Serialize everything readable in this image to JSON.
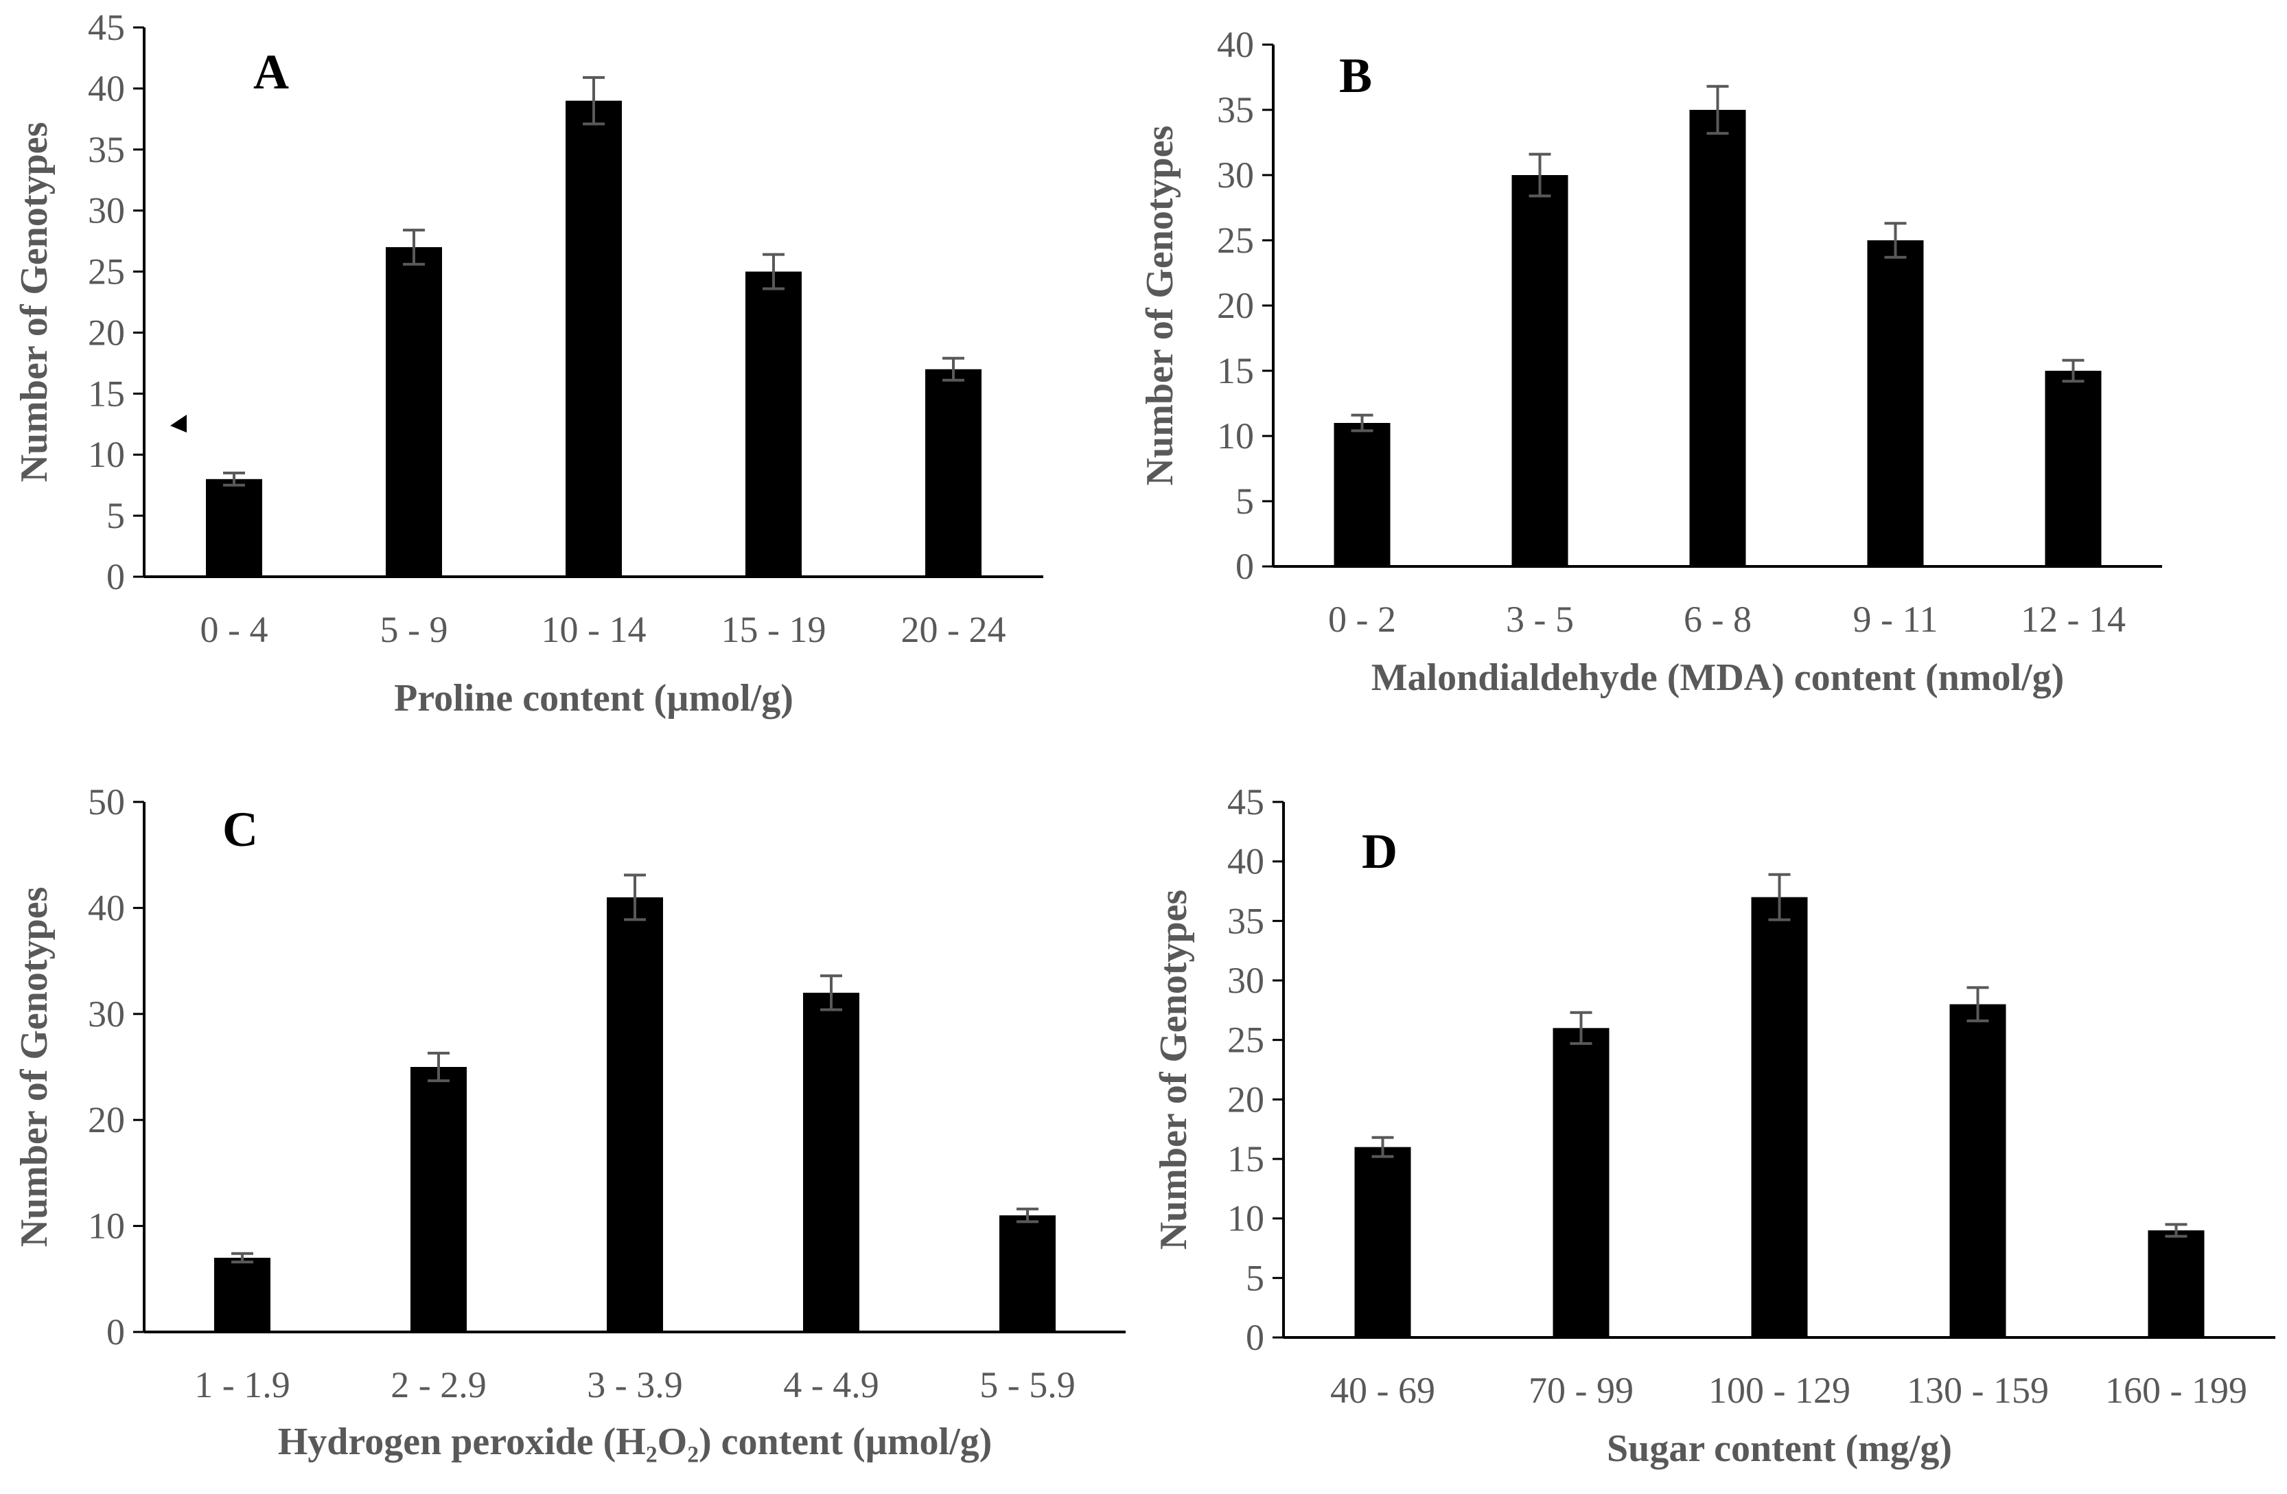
{
  "figure": {
    "background": "#ffffff",
    "bar_color": "#000000",
    "axis_color": "#000000",
    "text_color": "#595959",
    "errorbar_color": "#595959"
  },
  "chart_data": [
    {
      "panel": "A",
      "type": "bar",
      "categories": [
        "0 - 4",
        "5 - 9",
        "10 - 14",
        "15 - 19",
        "20 - 24"
      ],
      "values": [
        8,
        27,
        39,
        25,
        17
      ],
      "errors": [
        0.5,
        1.4,
        1.9,
        1.4,
        0.9
      ],
      "yticks": [
        0,
        5,
        10,
        15,
        20,
        25,
        30,
        35,
        40,
        45
      ],
      "ylim": [
        0,
        45
      ],
      "xlabel": "Proline content (µmol/g)",
      "ylabel": "Number of Genotypes"
    },
    {
      "panel": "B",
      "type": "bar",
      "categories": [
        "0 - 2",
        "3 - 5",
        "6 - 8",
        "9 - 11",
        "12 - 14"
      ],
      "values": [
        11,
        30,
        35,
        25,
        15
      ],
      "errors": [
        0.6,
        1.6,
        1.8,
        1.3,
        0.8
      ],
      "yticks": [
        0,
        5,
        10,
        15,
        20,
        25,
        30,
        35,
        40
      ],
      "ylim": [
        0,
        40
      ],
      "xlabel": "Malondialdehyde (MDA) content (nmol/g)",
      "ylabel": "Number of Genotypes"
    },
    {
      "panel": "C",
      "type": "bar",
      "categories": [
        "1 - 1.9",
        "2 - 2.9",
        "3 - 3.9",
        "4 - 4.9",
        "5 - 5.9"
      ],
      "values": [
        7,
        25,
        41,
        32,
        11
      ],
      "errors": [
        0.4,
        1.3,
        2.1,
        1.6,
        0.6
      ],
      "yticks": [
        0,
        10,
        20,
        30,
        40,
        50
      ],
      "ylim": [
        0,
        50
      ],
      "xlabel": "Hydrogen peroxide (H₂O₂) content (µmol/g)",
      "ylabel": "Number of Genotypes"
    },
    {
      "panel": "D",
      "type": "bar",
      "categories": [
        "40 - 69",
        "70 - 99",
        "100 - 129",
        "130 - 159",
        "160 - 199"
      ],
      "values": [
        16,
        26,
        37,
        28,
        9
      ],
      "errors": [
        0.8,
        1.3,
        1.9,
        1.4,
        0.5
      ],
      "yticks": [
        0,
        5,
        10,
        15,
        20,
        25,
        30,
        35,
        40,
        45
      ],
      "ylim": [
        0,
        45
      ],
      "xlabel": "Sugar content (mg/g)",
      "ylabel": "Number of Genotypes"
    }
  ]
}
